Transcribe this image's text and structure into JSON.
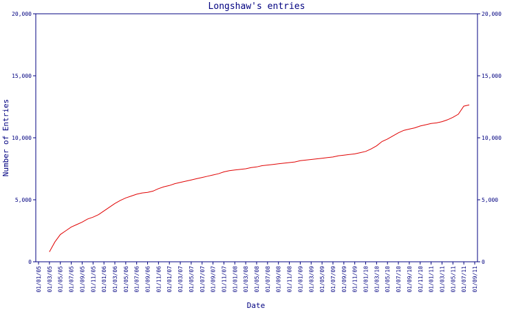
{
  "chart_data": {
    "type": "line",
    "title": "Longshaw's entries",
    "xlabel": "Date",
    "ylabel": "Number of Entries",
    "ylim": [
      0,
      20000
    ],
    "yticks": [
      "0",
      "5,000",
      "10,000",
      "15,000",
      "20,000"
    ],
    "x_tick_labels": [
      "01/01/05",
      "01/03/05",
      "01/05/05",
      "01/07/05",
      "01/09/05",
      "01/11/05",
      "01/01/06",
      "01/03/06",
      "01/05/06",
      "01/07/06",
      "01/09/06",
      "01/11/06",
      "01/01/07",
      "01/03/07",
      "01/05/07",
      "01/07/07",
      "01/09/07",
      "01/11/07",
      "01/01/08",
      "01/03/08",
      "01/05/08",
      "01/07/08",
      "01/09/08",
      "01/11/08",
      "01/01/09",
      "01/03/09",
      "01/05/09",
      "01/07/09",
      "01/09/09",
      "01/11/09",
      "01/01/10",
      "01/03/10",
      "01/05/10",
      "01/07/10",
      "01/09/10",
      "01/11/10",
      "01/01/11",
      "01/03/11",
      "01/05/11",
      "01/07/11",
      "01/09/11"
    ],
    "x": [
      "2005-03-01",
      "2005-04-01",
      "2005-05-01",
      "2005-06-01",
      "2005-07-01",
      "2005-08-01",
      "2005-09-01",
      "2005-10-01",
      "2005-11-01",
      "2005-12-01",
      "2006-01-01",
      "2006-02-01",
      "2006-03-01",
      "2006-04-01",
      "2006-05-01",
      "2006-06-01",
      "2006-07-01",
      "2006-08-01",
      "2006-09-01",
      "2006-10-01",
      "2006-11-01",
      "2006-12-01",
      "2007-01-01",
      "2007-02-01",
      "2007-03-01",
      "2007-04-01",
      "2007-05-01",
      "2007-06-01",
      "2007-07-01",
      "2007-08-01",
      "2007-09-01",
      "2007-10-01",
      "2007-11-01",
      "2007-12-01",
      "2008-01-01",
      "2008-02-01",
      "2008-03-01",
      "2008-04-01",
      "2008-05-01",
      "2008-06-01",
      "2008-07-01",
      "2008-08-01",
      "2008-09-01",
      "2008-10-01",
      "2008-11-01",
      "2008-12-01",
      "2009-01-01",
      "2009-02-01",
      "2009-03-01",
      "2009-04-01",
      "2009-05-01",
      "2009-06-01",
      "2009-07-01",
      "2009-08-01",
      "2009-09-01",
      "2009-10-01",
      "2009-11-01",
      "2009-12-01",
      "2010-01-01",
      "2010-02-01",
      "2010-03-01",
      "2010-04-01",
      "2010-05-01",
      "2010-06-01",
      "2010-07-01",
      "2010-08-01",
      "2010-09-01",
      "2010-10-01",
      "2010-11-01",
      "2010-12-01",
      "2011-01-01",
      "2011-02-01",
      "2011-03-01",
      "2011-04-01",
      "2011-05-01",
      "2011-06-01",
      "2011-07-01",
      "2011-08-01"
    ],
    "series": [
      {
        "color": "#e00000",
        "values": [
          800,
          1600,
          2200,
          2500,
          2800,
          3000,
          3200,
          3450,
          3600,
          3800,
          4100,
          4400,
          4700,
          4950,
          5150,
          5300,
          5450,
          5550,
          5600,
          5700,
          5900,
          6050,
          6150,
          6300,
          6400,
          6500,
          6600,
          6700,
          6800,
          6900,
          7000,
          7100,
          7250,
          7350,
          7400,
          7450,
          7500,
          7600,
          7650,
          7750,
          7800,
          7850,
          7900,
          7950,
          8000,
          8050,
          8150,
          8200,
          8250,
          8300,
          8350,
          8400,
          8450,
          8550,
          8600,
          8650,
          8700,
          8800,
          8900,
          9100,
          9350,
          9700,
          9900,
          10150,
          10400,
          10600,
          10700,
          10800,
          10950,
          11050,
          11150,
          11200,
          11300,
          11450,
          11650,
          11900,
          12550,
          12650
        ]
      }
    ],
    "grid": false
  }
}
